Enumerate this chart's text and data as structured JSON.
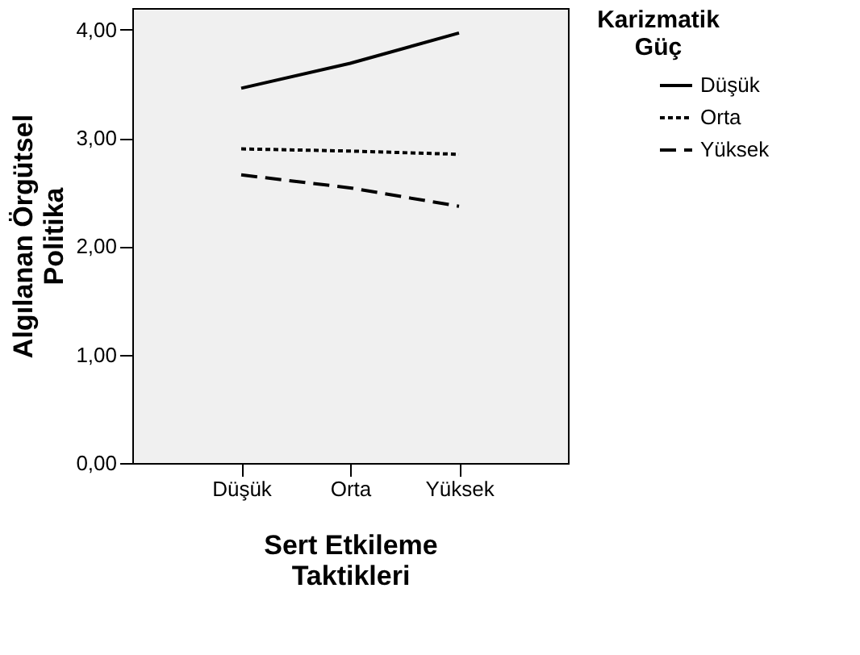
{
  "chart_data": {
    "type": "line",
    "xlabel": "Sert Etkileme Taktikleri",
    "ylabel": "Algılanan Örgütsel Politika",
    "legend_title": "Karizmatik Güç",
    "categories": [
      "Düşük",
      "Orta",
      "Yüksek"
    ],
    "series": [
      {
        "name": "Düşük",
        "color": "#000000",
        "line_style": "solid",
        "values": [
          3.46,
          3.69,
          3.97
        ]
      },
      {
        "name": "Orta",
        "color": "#000000",
        "line_style": "dotted",
        "values": [
          2.9,
          2.88,
          2.85
        ]
      },
      {
        "name": "Yüksek",
        "color": "#000000",
        "line_style": "dashed",
        "values": [
          2.66,
          2.54,
          2.37
        ]
      }
    ],
    "ylim": [
      0,
      4.2
    ],
    "yticks": [
      {
        "value": 0,
        "label": "0,00"
      },
      {
        "value": 1,
        "label": "1,00"
      },
      {
        "value": 2,
        "label": "2,00"
      },
      {
        "value": 3,
        "label": "3,00"
      },
      {
        "value": 4,
        "label": "4,00"
      }
    ],
    "grid": false,
    "legend": "right",
    "marker": "none"
  }
}
